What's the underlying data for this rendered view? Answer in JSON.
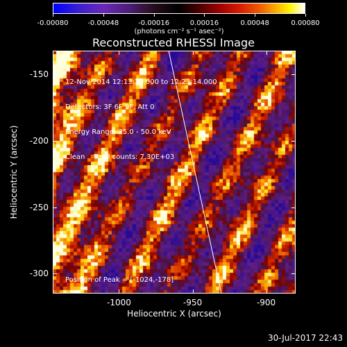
{
  "colorbar": {
    "ticks": [
      "-0.00080",
      "-0.00048",
      "-0.00016",
      "0.00016",
      "0.00048",
      "0.00080"
    ],
    "units_label": "(photons cm⁻² s⁻¹ asec⁻²)"
  },
  "plot": {
    "title": "Reconstructed RHESSI Image",
    "info_lines": [
      "12-Nov-2014 12:13:14.000 to 12:23:14.000",
      "Detectors: 3F 6F 9F, Att 0",
      "Energy Range: 25.0 - 50.0 keV",
      "Clean    Total counts: 7.30E+03"
    ],
    "peak_text": "Position of Peak = [-1024,-178]",
    "x_ticks": [
      "-1000",
      "-950",
      "-900"
    ],
    "y_ticks": [
      "-150",
      "-200",
      "-250",
      "-300"
    ],
    "x_label": "Heliocentric X (arcsec)",
    "y_label": "Heliocentric Y (arcsec)",
    "x_range": [
      -1045,
      -880
    ],
    "y_range": [
      -315,
      -132
    ]
  },
  "footer": {
    "date": "30-Jul-2017 22:43"
  }
}
